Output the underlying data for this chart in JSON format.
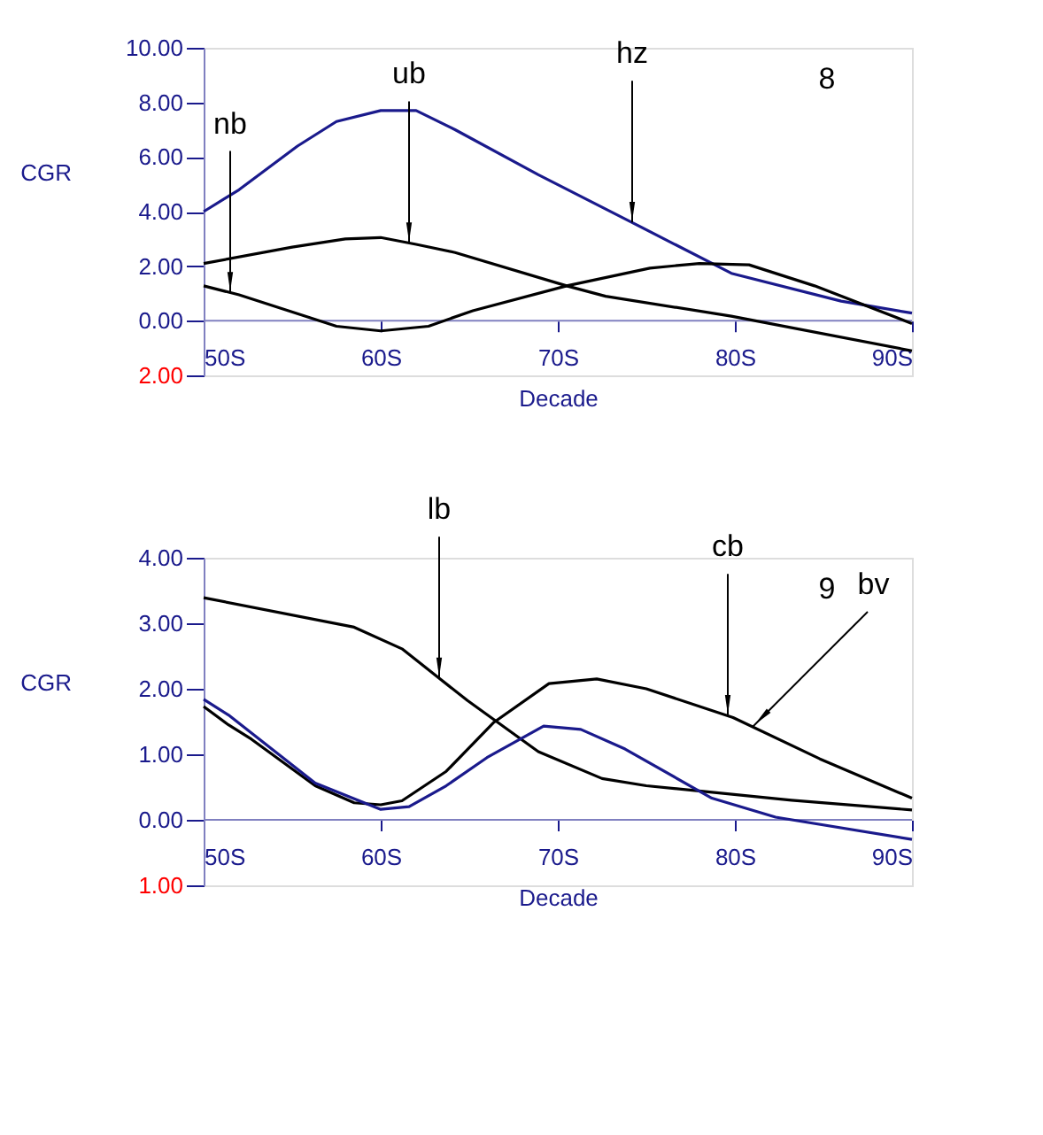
{
  "chart_data": [
    {
      "type": "line",
      "xlabel": "Decade",
      "ylabel": "CGR",
      "xlim": [
        50,
        90
      ],
      "ylim": [
        -2,
        10
      ],
      "xticks": [
        {
          "value": 50,
          "label": "50S"
        },
        {
          "value": 60,
          "label": "60S"
        },
        {
          "value": 70,
          "label": "70S"
        },
        {
          "value": 80,
          "label": "80S"
        },
        {
          "value": 90,
          "label": "90S"
        }
      ],
      "yticks": [
        {
          "value": -2,
          "label": "2.00"
        },
        {
          "value": 0,
          "label": "0.00"
        },
        {
          "value": 2,
          "label": "2.00"
        },
        {
          "value": 4,
          "label": "4.00"
        },
        {
          "value": 6,
          "label": "6.00"
        },
        {
          "value": 8,
          "label": "8.00"
        },
        {
          "value": 10,
          "label": "10.00"
        }
      ],
      "grid": false,
      "marker": "none",
      "line_style": "solid",
      "ref_lines": [
        {
          "axis": "y",
          "value": 0,
          "color": "#8080c0"
        }
      ],
      "series": [
        {
          "color": "#1a1a8c",
          "x": [
            50,
            52,
            55.3,
            57.5,
            60,
            62,
            64.2,
            68.9,
            74.2,
            79.8,
            86,
            90
          ],
          "values": [
            4.0,
            4.8,
            6.4,
            7.3,
            7.7,
            7.7,
            7.0,
            5.35,
            3.6,
            1.74,
            0.72,
            0.28
          ]
        },
        {
          "color": "#000000",
          "x": [
            50,
            55,
            58,
            60,
            62,
            64.2,
            70.5,
            72.7,
            79.8,
            90
          ],
          "values": [
            2.1,
            2.7,
            3.0,
            3.05,
            2.8,
            2.5,
            1.28,
            0.9,
            0.17,
            -1.1
          ]
        },
        {
          "color": "#000000",
          "x": [
            50,
            52,
            57.5,
            60,
            62.7,
            65.2,
            70.5,
            75.2,
            78,
            80.8,
            84.5,
            90
          ],
          "values": [
            1.28,
            0.95,
            -0.2,
            -0.37,
            -0.2,
            0.37,
            1.28,
            1.93,
            2.1,
            2.05,
            1.28,
            -0.1
          ]
        }
      ],
      "annotations": [
        {
          "text": "nb",
          "x": 51.5,
          "y": 1.03
        },
        {
          "text": "ub",
          "x": 61.6,
          "y": 2.85
        },
        {
          "text": "hz",
          "x": 74.2,
          "y": 3.6
        },
        "8"
      ]
    },
    {
      "type": "line",
      "xlabel": "Decade",
      "ylabel": "CGR",
      "xlim": [
        50,
        90
      ],
      "ylim": [
        -1,
        4
      ],
      "xticks": [
        {
          "value": 50,
          "label": "50S"
        },
        {
          "value": 60,
          "label": "60S"
        },
        {
          "value": 70,
          "label": "70S"
        },
        {
          "value": 80,
          "label": "80S"
        },
        {
          "value": 90,
          "label": "90S"
        }
      ],
      "yticks": [
        {
          "value": -1,
          "label": "1.00"
        },
        {
          "value": 0,
          "label": "0.00"
        },
        {
          "value": 1,
          "label": "1.00"
        },
        {
          "value": 2,
          "label": "2.00"
        },
        {
          "value": 3,
          "label": "3.00"
        },
        {
          "value": 4,
          "label": "4.00"
        }
      ],
      "grid": false,
      "marker": "none",
      "line_style": "solid",
      "ref_lines": [
        {
          "axis": "y",
          "value": 0,
          "color": "#8080c0"
        }
      ],
      "series": [
        {
          "color": "#000000",
          "x": [
            50,
            58.5,
            61.2,
            64.9,
            68.9,
            72.5,
            75,
            83.2,
            90
          ],
          "values": [
            3.39,
            2.94,
            2.61,
            1.82,
            1.04,
            0.63,
            0.52,
            0.3,
            0.15
          ]
        },
        {
          "color": "#000000",
          "x": [
            50,
            51.4,
            52.7,
            56.3,
            58.5,
            60,
            61.2,
            63.7,
            66.4,
            69.5,
            72.2,
            75,
            79.9,
            84.8,
            90
          ],
          "values": [
            1.73,
            1.45,
            1.23,
            0.52,
            0.26,
            0.23,
            0.29,
            0.74,
            1.49,
            2.08,
            2.15,
            2.0,
            1.56,
            0.93,
            0.33
          ]
        },
        {
          "color": "#1a1a8c",
          "x": [
            50,
            51.4,
            56.3,
            60,
            61.6,
            63.7,
            66,
            69.2,
            71.3,
            73.8,
            78.7,
            82.3,
            90
          ],
          "values": [
            1.84,
            1.6,
            0.56,
            0.16,
            0.2,
            0.52,
            0.95,
            1.43,
            1.38,
            1.08,
            0.33,
            0.04,
            -0.3
          ]
        }
      ],
      "annotations": [
        {
          "text": "lb",
          "x": 63.3,
          "y": 2.16
        },
        {
          "text": "cb",
          "x": 79.6,
          "y": 1.59
        },
        {
          "text": "bv",
          "x": 81.0,
          "y": 1.42
        },
        "9"
      ]
    }
  ]
}
